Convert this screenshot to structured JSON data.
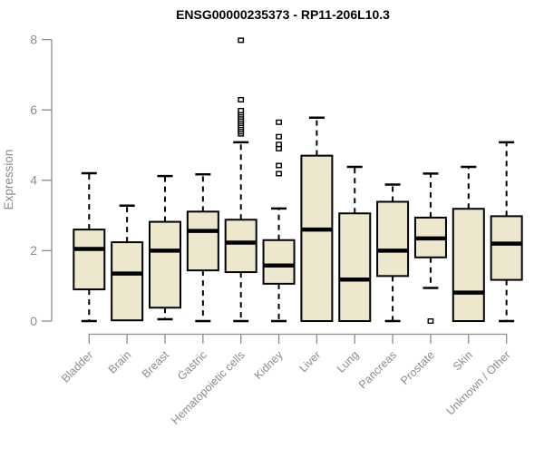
{
  "chart_data": {
    "type": "boxplot",
    "title": "ENSG00000235373 - RP11-206L10.3",
    "ylabel": "Expression",
    "ylim": [
      0,
      8
    ],
    "yticks": [
      0,
      2,
      4,
      6,
      8
    ],
    "grid": false,
    "legend": "none",
    "categories": [
      "Bladder",
      "Brain",
      "Breast",
      "Gastric",
      "Hematopoietic cells",
      "Kidney",
      "Liver",
      "Lung",
      "Pancreas",
      "Prostate",
      "Skin",
      "Unknown / Other"
    ],
    "boxes": [
      {
        "category": "Bladder",
        "whisker_low": 0,
        "q1": 0.9,
        "median": 2.05,
        "q3": 2.6,
        "whisker_high": 4.2,
        "outliers": []
      },
      {
        "category": "Brain",
        "whisker_low": 0.02,
        "q1": 0.02,
        "median": 1.35,
        "q3": 2.24,
        "whisker_high": 3.28,
        "outliers": []
      },
      {
        "category": "Breast",
        "whisker_low": 0.05,
        "q1": 0.38,
        "median": 2.0,
        "q3": 2.82,
        "whisker_high": 4.12,
        "outliers": []
      },
      {
        "category": "Gastric",
        "whisker_low": 0,
        "q1": 1.44,
        "median": 2.56,
        "q3": 3.11,
        "whisker_high": 4.17,
        "outliers": []
      },
      {
        "category": "Hematopoietic cells",
        "whisker_low": 0,
        "q1": 1.39,
        "median": 2.23,
        "q3": 2.88,
        "whisker_high": 5.08,
        "outliers": [
          5.32,
          5.38,
          5.44,
          5.5,
          5.56,
          5.62,
          5.68,
          5.74,
          5.8,
          5.86,
          5.92,
          5.98,
          6.29,
          7.98
        ]
      },
      {
        "category": "Kidney",
        "whisker_low": 0,
        "q1": 1.06,
        "median": 1.58,
        "q3": 2.3,
        "whisker_high": 3.2,
        "outliers": [
          4.19,
          4.42,
          4.9,
          5.02,
          5.24,
          5.65
        ]
      },
      {
        "category": "Liver",
        "whisker_low": 0,
        "q1": 0,
        "median": 2.6,
        "q3": 4.7,
        "whisker_high": 5.78,
        "outliers": []
      },
      {
        "category": "Lung",
        "whisker_low": 0,
        "q1": 0,
        "median": 1.18,
        "q3": 3.06,
        "whisker_high": 4.38,
        "outliers": []
      },
      {
        "category": "Pancreas",
        "whisker_low": 0,
        "q1": 1.28,
        "median": 2.0,
        "q3": 3.39,
        "whisker_high": 3.88,
        "outliers": []
      },
      {
        "category": "Prostate",
        "whisker_low": 0.94,
        "q1": 1.81,
        "median": 2.35,
        "q3": 2.94,
        "whisker_high": 4.19,
        "outliers": [
          0
        ]
      },
      {
        "category": "Skin",
        "whisker_low": 0,
        "q1": 0,
        "median": 0.81,
        "q3": 3.19,
        "whisker_high": 4.38,
        "outliers": []
      },
      {
        "category": "Unknown / Other",
        "whisker_low": 0,
        "q1": 1.17,
        "median": 2.2,
        "q3": 2.98,
        "whisker_high": 5.08,
        "outliers": []
      }
    ],
    "colors": {
      "box_fill": "#ede8cd",
      "box_stroke": "#000000",
      "median": "#000000",
      "whisker": "#000000",
      "outlier_stroke": "#000000",
      "outlier_fill": "#ffffff",
      "axis": "#8c8c8c",
      "tick_text": "#8c8c8c",
      "title": "#000000",
      "background": "#ffffff"
    }
  }
}
